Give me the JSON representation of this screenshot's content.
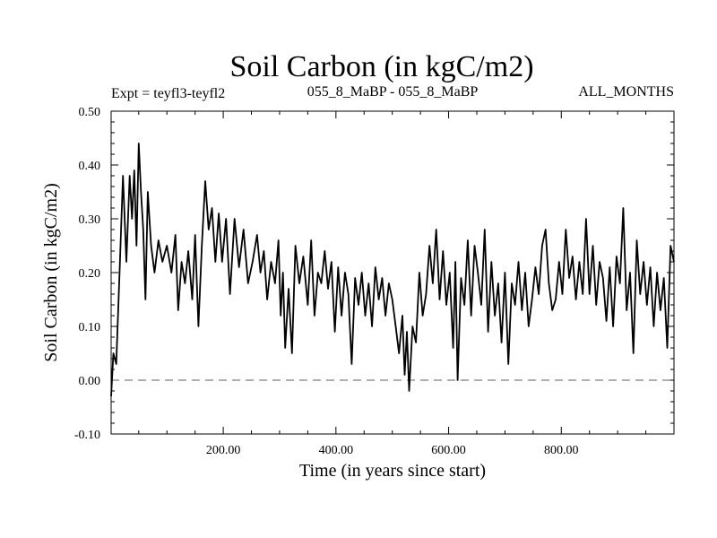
{
  "chart_data": {
    "type": "line",
    "title": "Soil Carbon (in kgC/m2)",
    "subtitle_left": "Expt = teyfl3-teyfl2",
    "subtitle_center": "055_8_MaBP - 055_8_MaBP",
    "subtitle_right": "ALL_MONTHS",
    "xlabel": "Time (in years since start)",
    "ylabel": "Soil Carbon (in kgC/m2)",
    "xlim": [
      1,
      1000
    ],
    "ylim": [
      -0.1,
      0.5
    ],
    "x_ticks": [
      200,
      400,
      600,
      800
    ],
    "x_tick_labels": [
      "200.00",
      "400.00",
      "600.00",
      "800.00"
    ],
    "y_ticks": [
      -0.1,
      0.0,
      0.1,
      0.2,
      0.3,
      0.4,
      0.5
    ],
    "y_tick_labels": [
      "-0.10",
      "0.00",
      "0.10",
      "0.20",
      "0.30",
      "0.40",
      "0.50"
    ],
    "reference_line": {
      "y": 0.0,
      "style": "dashed"
    },
    "series": [
      {
        "name": "Soil Carbon",
        "x": [
          1,
          5,
          10,
          16,
          22,
          28,
          34,
          38,
          42,
          46,
          50,
          54,
          58,
          62,
          66,
          72,
          78,
          85,
          92,
          100,
          108,
          115,
          120,
          126,
          132,
          138,
          145,
          150,
          156,
          162,
          168,
          174,
          180,
          186,
          192,
          198,
          205,
          212,
          220,
          228,
          236,
          244,
          252,
          260,
          266,
          272,
          278,
          285,
          292,
          298,
          302,
          306,
          310,
          316,
          322,
          328,
          335,
          342,
          350,
          356,
          362,
          368,
          374,
          380,
          386,
          392,
          398,
          404,
          410,
          416,
          422,
          428,
          434,
          440,
          446,
          452,
          458,
          464,
          470,
          476,
          482,
          488,
          494,
          500,
          506,
          512,
          518,
          522,
          526,
          530,
          536,
          542,
          548,
          554,
          560,
          566,
          572,
          578,
          584,
          590,
          596,
          602,
          608,
          612,
          616,
          622,
          628,
          634,
          640,
          646,
          652,
          658,
          664,
          670,
          676,
          682,
          688,
          694,
          700,
          706,
          712,
          718,
          724,
          730,
          736,
          742,
          748,
          754,
          760,
          766,
          772,
          778,
          784,
          790,
          796,
          802,
          808,
          814,
          820,
          826,
          832,
          838,
          844,
          850,
          856,
          862,
          868,
          874,
          880,
          886,
          892,
          898,
          904,
          910,
          916,
          922,
          928,
          934,
          940,
          946,
          952,
          958,
          964,
          970,
          976,
          982,
          988,
          994,
          1000
        ],
        "values": [
          -0.03,
          0.05,
          0.03,
          0.2,
          0.38,
          0.22,
          0.38,
          0.3,
          0.39,
          0.25,
          0.44,
          0.35,
          0.28,
          0.15,
          0.35,
          0.25,
          0.2,
          0.26,
          0.22,
          0.25,
          0.2,
          0.27,
          0.13,
          0.22,
          0.18,
          0.24,
          0.15,
          0.27,
          0.1,
          0.25,
          0.37,
          0.28,
          0.32,
          0.22,
          0.31,
          0.22,
          0.3,
          0.16,
          0.3,
          0.21,
          0.28,
          0.18,
          0.22,
          0.27,
          0.2,
          0.24,
          0.15,
          0.22,
          0.18,
          0.26,
          0.12,
          0.2,
          0.06,
          0.17,
          0.05,
          0.25,
          0.18,
          0.23,
          0.14,
          0.26,
          0.12,
          0.2,
          0.18,
          0.24,
          0.17,
          0.22,
          0.09,
          0.21,
          0.12,
          0.2,
          0.16,
          0.03,
          0.19,
          0.14,
          0.2,
          0.12,
          0.18,
          0.1,
          0.21,
          0.15,
          0.19,
          0.12,
          0.18,
          0.15,
          0.1,
          0.05,
          0.12,
          0.01,
          0.09,
          -0.02,
          0.1,
          0.07,
          0.2,
          0.12,
          0.16,
          0.25,
          0.18,
          0.28,
          0.15,
          0.24,
          0.14,
          0.2,
          0.06,
          0.22,
          0.0,
          0.19,
          0.14,
          0.26,
          0.12,
          0.25,
          0.2,
          0.14,
          0.28,
          0.09,
          0.22,
          0.12,
          0.18,
          0.07,
          0.2,
          0.03,
          0.18,
          0.14,
          0.22,
          0.13,
          0.2,
          0.1,
          0.15,
          0.21,
          0.16,
          0.25,
          0.28,
          0.18,
          0.13,
          0.15,
          0.22,
          0.16,
          0.28,
          0.19,
          0.23,
          0.15,
          0.22,
          0.16,
          0.3,
          0.16,
          0.25,
          0.14,
          0.22,
          0.19,
          0.11,
          0.21,
          0.1,
          0.23,
          0.18,
          0.32,
          0.13,
          0.2,
          0.05,
          0.26,
          0.16,
          0.22,
          0.14,
          0.21,
          0.1,
          0.2,
          0.13,
          0.19,
          0.06,
          0.25,
          0.22
        ]
      }
    ]
  }
}
